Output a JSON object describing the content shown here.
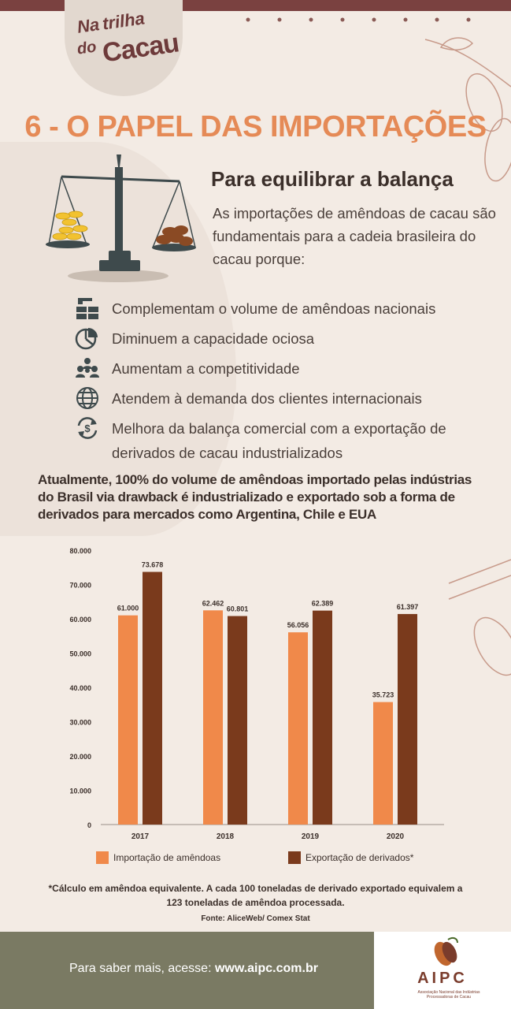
{
  "header": {
    "logo_line1": "Na",
    "logo_line2": "trilha",
    "logo_line3": "do",
    "logo_line4": "Cacau",
    "title": "6 - O PAPEL DAS IMPORTAÇÕES"
  },
  "intro": {
    "subtitle": "Para equilibrar a balança",
    "text": "As importações de amêndoas de cacau são fundamentais para a cadeia brasileira do cacau porque:"
  },
  "reasons": [
    {
      "icon": "warehouse-boxes-icon",
      "text": "Complementam o volume de amêndoas nacionais"
    },
    {
      "icon": "pie-chart-icon",
      "text": "Diminuem a capacidade ociosa"
    },
    {
      "icon": "people-group-icon",
      "text": "Aumentam a competitividade"
    },
    {
      "icon": "globe-icon",
      "text": "Atendem à demanda dos clientes internacionais"
    },
    {
      "icon": "currency-exchange-icon",
      "text": "Melhora da balança comercial com a exportação de derivados de cacau industrializados"
    }
  ],
  "highlight": "Atualmente, 100% do volume de amêndoas importado pelas indústrias do Brasil via drawback é industrializado e exportado sob a forma de derivados para mercados como Argentina, Chile e EUA",
  "chart_data": {
    "type": "bar",
    "categories": [
      "2017",
      "2018",
      "2019",
      "2020"
    ],
    "series": [
      {
        "name": "Importação de amêndoas",
        "color": "#f0894a",
        "values": [
          61000,
          62462,
          56056,
          35723
        ],
        "labels": [
          "61.000",
          "62.462",
          "56.056",
          "35.723"
        ]
      },
      {
        "name": "Exportação de derivados*",
        "color": "#7a3a1c",
        "values": [
          73678,
          60801,
          62389,
          61397
        ],
        "labels": [
          "73.678",
          "60.801",
          "62.389",
          "61.397"
        ]
      }
    ],
    "yticks": [
      0,
      10000,
      20000,
      30000,
      40000,
      50000,
      60000,
      70000,
      80000
    ],
    "ytick_labels": [
      "0",
      "10.000",
      "20.000",
      "30.000",
      "40.000",
      "50.000",
      "60.000",
      "70.000",
      "80.000"
    ],
    "ylim": [
      0,
      80000
    ],
    "title": "",
    "xlabel": "",
    "ylabel": "",
    "grid": false,
    "legend": "bottom"
  },
  "note": "*Cálculo em amêndoa equivalente. A cada 100 toneladas de derivado exportado equivalem a 123 toneladas de amêndoa processada.",
  "source": "Fonte: AliceWeb/ Comex Stat",
  "footer": {
    "prefix": "Para saber mais, acesse: ",
    "url": "www.aipc.com.br",
    "brand": "AIPC",
    "brand_sub": "Associação Nacional das Indústrias Processadoras de Cacau"
  }
}
